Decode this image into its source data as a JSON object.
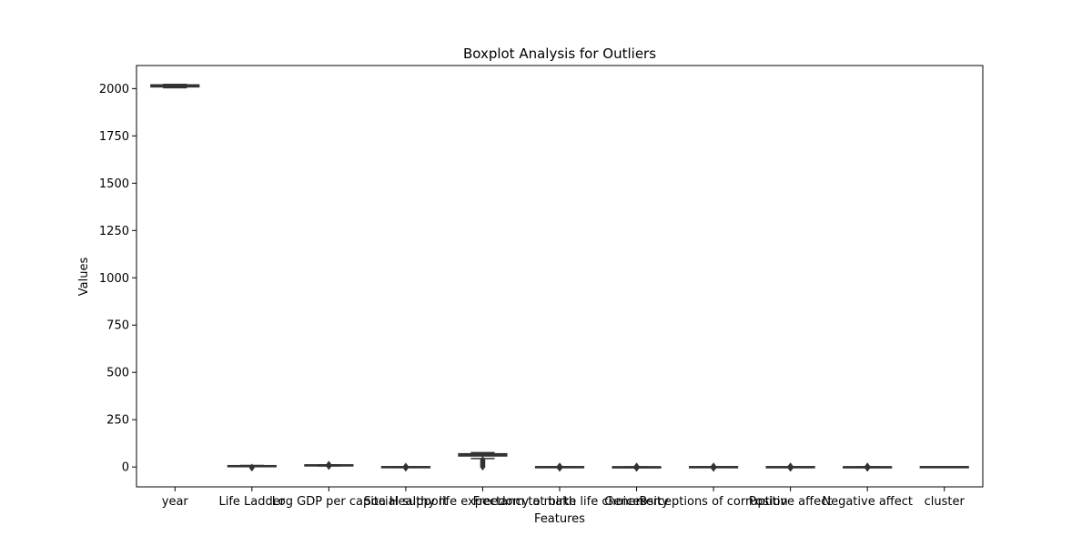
{
  "chart_data": {
    "type": "box",
    "title": "Boxplot Analysis for Outliers",
    "xlabel": "Features",
    "ylabel": "Values",
    "ylim": [
      -105,
      2122
    ],
    "yticks": [
      0,
      250,
      500,
      750,
      1000,
      1250,
      1500,
      1750,
      2000
    ],
    "grid": false,
    "box_color": "#333333",
    "boxes": [
      {
        "category": "year",
        "whislo": 2005,
        "q1": 2010,
        "median": 2015,
        "q3": 2019,
        "whishi": 2022,
        "outliers": []
      },
      {
        "category": "Life Ladder",
        "whislo": 2.5,
        "q1": 4.6,
        "median": 5.4,
        "q3": 6.3,
        "whishi": 8.0,
        "outliers": [
          -5,
          -3,
          -1
        ]
      },
      {
        "category": "Log GDP per capita",
        "whislo": 5.5,
        "q1": 8.4,
        "median": 9.5,
        "q3": 10.4,
        "whishi": 11.7,
        "outliers": [
          3,
          5,
          7,
          14
        ]
      },
      {
        "category": "Social support",
        "whislo": 0.3,
        "q1": 0.75,
        "median": 0.83,
        "q3": 0.9,
        "whishi": 0.99,
        "outliers": [
          -6,
          -3,
          -1,
          2,
          4
        ]
      },
      {
        "category": "Healthy life expectancy at birth",
        "whislo": 45,
        "q1": 59,
        "median": 65,
        "q3": 69,
        "whishi": 76,
        "outliers": [
          0,
          3,
          6,
          10,
          14,
          18,
          22,
          26,
          30,
          34,
          38
        ]
      },
      {
        "category": "Freedom to make life choices",
        "whislo": 0.3,
        "q1": 0.66,
        "median": 0.77,
        "q3": 0.86,
        "whishi": 0.99,
        "outliers": [
          -7,
          -4,
          -1,
          2,
          5
        ]
      },
      {
        "category": "Generosity",
        "whislo": -0.34,
        "q1": -0.11,
        "median": -0.02,
        "q3": 0.09,
        "whishi": 0.7,
        "outliers": [
          -7,
          -4,
          -1,
          2,
          5
        ]
      },
      {
        "category": "Perceptions of corruption",
        "whislo": 0.03,
        "q1": 0.69,
        "median": 0.8,
        "q3": 0.87,
        "whishi": 0.98,
        "outliers": [
          -7,
          -4,
          -1,
          2,
          5
        ]
      },
      {
        "category": "Positive affect",
        "whislo": 0.18,
        "q1": 0.57,
        "median": 0.66,
        "q3": 0.74,
        "whishi": 0.88,
        "outliers": [
          -7,
          -4,
          -1,
          2,
          5
        ]
      },
      {
        "category": "Negative affect",
        "whislo": 0.08,
        "q1": 0.21,
        "median": 0.26,
        "q3": 0.33,
        "whishi": 0.7,
        "outliers": [
          -7,
          -4,
          -1,
          2,
          5
        ]
      },
      {
        "category": "cluster",
        "whislo": 0,
        "q1": 0,
        "median": 1,
        "q3": 1,
        "whishi": 2,
        "outliers": []
      }
    ]
  }
}
